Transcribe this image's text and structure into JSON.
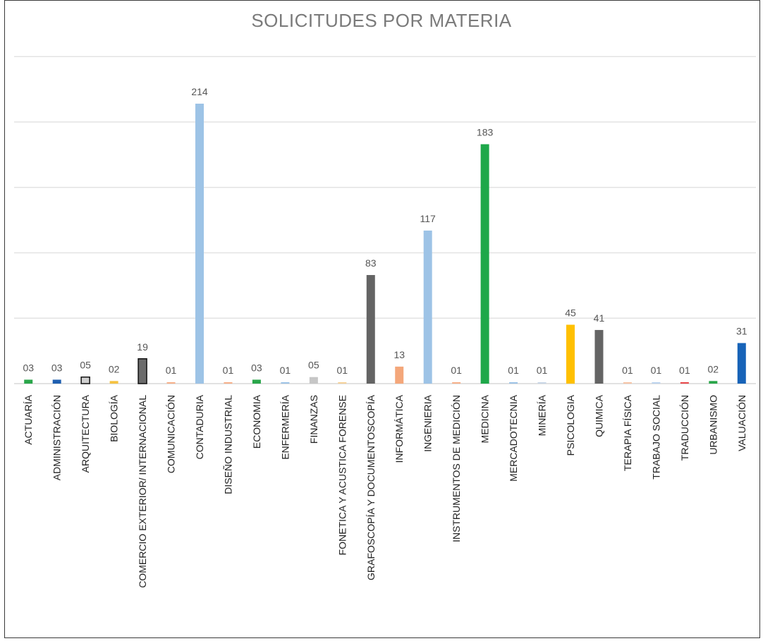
{
  "chart_data": {
    "type": "bar",
    "title": "SOLICITUDES POR MATERIA",
    "xlabel": "",
    "ylabel": "",
    "ylim": [
      0,
      250
    ],
    "grid": true,
    "legend": "none",
    "categories": [
      "ACTUARÍA",
      "ADMINISTRACIÓN",
      "ARQUITECTURA",
      "BIOLOGÍA",
      "COMERCIO EXTERIOR/ INTERNACIONAL",
      "COMUNICACIÓN",
      "CONTADURIA",
      "DISEÑO INDUSTRIAL",
      "ECONOMIA",
      "ENFERMERÍA",
      "FINANZAS",
      "FONETICA Y ACUSTICA FORENSE",
      "GRAFOSCOPÍA Y DOCUMENTOSCOPÍA",
      "INFORMÁTICA",
      "INGENIERIA",
      "INSTRUMENTOS DE MEDICIÓN",
      "MEDICINA",
      "MERCADOTECNIA",
      "MINERÍA",
      "PSICOLOGIA",
      "QUIMICA",
      "TERAPIA FÍSICA",
      "TRABAJO SOCIAL",
      "TRADUCCIÓN",
      "URBANISMO",
      "VALUACIÓN"
    ],
    "values": [
      3,
      3,
      5,
      2,
      19,
      1,
      214,
      1,
      3,
      1,
      5,
      1,
      83,
      13,
      117,
      1,
      183,
      1,
      1,
      45,
      41,
      1,
      1,
      1,
      2,
      31
    ],
    "data_labels": [
      "03",
      "03",
      "05",
      "02",
      "19",
      "01",
      "214",
      "01",
      "03",
      "01",
      "05",
      "01",
      "83",
      "13",
      "117",
      "01",
      "183",
      "01",
      "01",
      "45",
      "41",
      "01",
      "01",
      "01",
      "02",
      "31"
    ],
    "colors": [
      "#2aa64a",
      "#1f5fb0",
      "#d0d0d0",
      "#f5c242",
      "#6a6a6a",
      "#f6b08a",
      "#9dc3e6",
      "#f6b08a",
      "#2aa64a",
      "#9dc3e6",
      "#c6c6c6",
      "#f5d29a",
      "#646464",
      "#f4a77a",
      "#9dc3e6",
      "#f6b08a",
      "#1ea84a",
      "#9dc3e6",
      "#c9d6e6",
      "#ffc000",
      "#646464",
      "#f6c4a6",
      "#bcd3ee",
      "#e8474a",
      "#2aa64a",
      "#1763b8"
    ],
    "outlined": [
      false,
      false,
      true,
      false,
      true,
      false,
      false,
      false,
      false,
      false,
      false,
      false,
      false,
      false,
      false,
      false,
      false,
      false,
      false,
      false,
      false,
      false,
      false,
      false,
      false,
      false
    ]
  }
}
